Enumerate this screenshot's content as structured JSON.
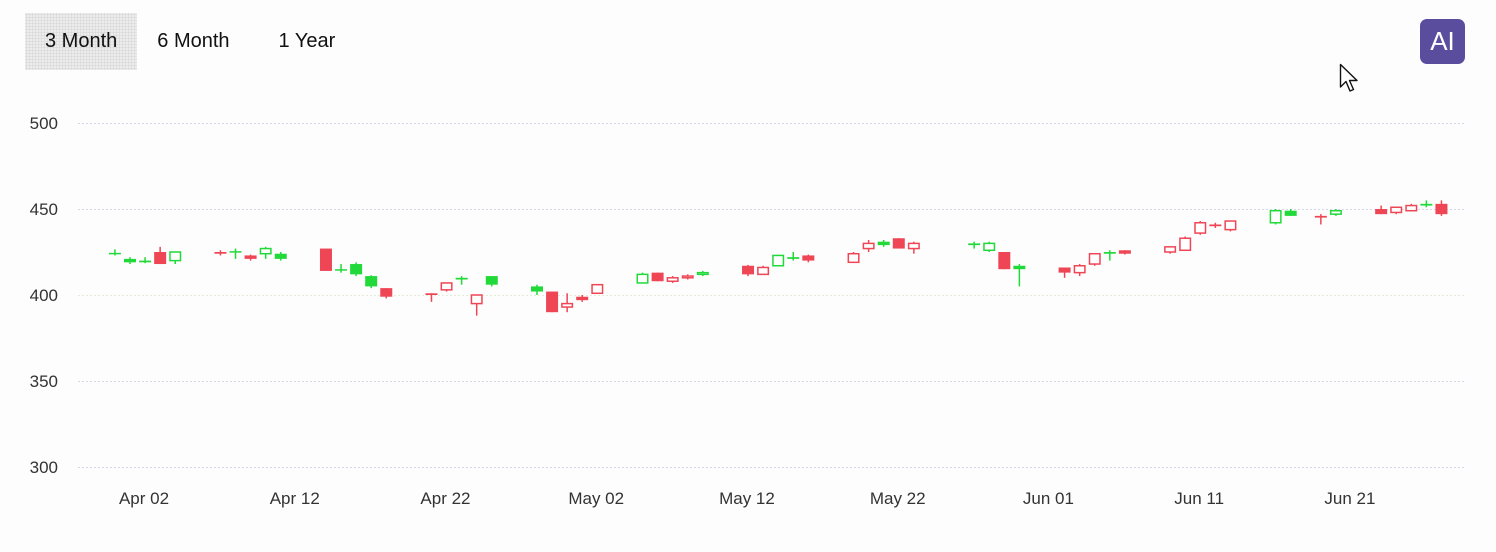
{
  "toolbar": {
    "tabs": [
      {
        "label": "3 Month",
        "selected": true
      },
      {
        "label": "6 Month",
        "selected": false
      },
      {
        "label": "1 Year",
        "selected": false
      }
    ],
    "ai_label": "AI",
    "ai_color": "#5b4d9e"
  },
  "colors": {
    "up": "#22d93a",
    "down": "#ef4656",
    "grid": "#d7d7ec",
    "grid_highlight": "#e4ecd7",
    "axis_text": "#333333"
  },
  "chart_data": {
    "type": "candlestick",
    "title": "",
    "xlabel": "",
    "ylabel": "",
    "ylim": [
      290,
      510
    ],
    "y_ticks": [
      300,
      350,
      400,
      450,
      500
    ],
    "x_ticks": [
      "Apr 02",
      "Apr 12",
      "Apr 22",
      "May 02",
      "May 12",
      "May 22",
      "Jun 01",
      "Jun 11",
      "Jun 21"
    ],
    "x_range": [
      "2024-03-29",
      "2024-06-29"
    ],
    "grid": true,
    "legend": "none",
    "candles": [
      {
        "date": "2024-04-01",
        "open": 424,
        "high": 426.5,
        "low": 423,
        "close": 424.5,
        "dir": "up",
        "filled": true
      },
      {
        "date": "2024-04-02",
        "open": 419,
        "high": 422,
        "low": 418,
        "close": 421,
        "dir": "up",
        "filled": true
      },
      {
        "date": "2024-04-03",
        "open": 419,
        "high": 422,
        "low": 418.5,
        "close": 420,
        "dir": "up",
        "filled": true
      },
      {
        "date": "2024-04-04",
        "open": 425,
        "high": 428,
        "low": 418,
        "close": 418,
        "dir": "down",
        "filled": true
      },
      {
        "date": "2024-04-05",
        "open": 420,
        "high": 425,
        "low": 418,
        "close": 425,
        "dir": "up",
        "filled": false
      },
      {
        "date": "2024-04-08",
        "open": 425,
        "high": 426,
        "low": 423,
        "close": 424,
        "dir": "down",
        "filled": true
      },
      {
        "date": "2024-04-09",
        "open": 425,
        "high": 427,
        "low": 421,
        "close": 425.5,
        "dir": "up",
        "filled": true
      },
      {
        "date": "2024-04-10",
        "open": 423,
        "high": 423.5,
        "low": 420,
        "close": 421,
        "dir": "down",
        "filled": true
      },
      {
        "date": "2024-04-11",
        "open": 424,
        "high": 428,
        "low": 421,
        "close": 427,
        "dir": "up",
        "filled": false
      },
      {
        "date": "2024-04-12",
        "open": 424,
        "high": 425,
        "low": 420,
        "close": 421,
        "dir": "up",
        "filled": true
      },
      {
        "date": "2024-04-15",
        "open": 427,
        "high": 427,
        "low": 414,
        "close": 414,
        "dir": "down",
        "filled": true
      },
      {
        "date": "2024-04-16",
        "open": 415,
        "high": 418,
        "low": 413,
        "close": 415,
        "dir": "up",
        "filled": true
      },
      {
        "date": "2024-04-17",
        "open": 418,
        "high": 419,
        "low": 411,
        "close": 412,
        "dir": "up",
        "filled": true
      },
      {
        "date": "2024-04-18",
        "open": 411,
        "high": 411.5,
        "low": 404,
        "close": 405,
        "dir": "up",
        "filled": true
      },
      {
        "date": "2024-04-19",
        "open": 404,
        "high": 404,
        "low": 398,
        "close": 399,
        "dir": "down",
        "filled": true
      },
      {
        "date": "2024-04-22",
        "open": 400,
        "high": 401,
        "low": 396,
        "close": 401,
        "dir": "down",
        "filled": true
      },
      {
        "date": "2024-04-23",
        "open": 403,
        "high": 407,
        "low": 402,
        "close": 407,
        "dir": "down",
        "filled": false
      },
      {
        "date": "2024-04-24",
        "open": 409,
        "high": 411,
        "low": 406,
        "close": 410,
        "dir": "up",
        "filled": true
      },
      {
        "date": "2024-04-25",
        "open": 395,
        "high": 400,
        "low": 388,
        "close": 400,
        "dir": "down",
        "filled": false
      },
      {
        "date": "2024-04-26",
        "open": 406,
        "high": 411,
        "low": 405,
        "close": 411,
        "dir": "up",
        "filled": true
      },
      {
        "date": "2024-04-29",
        "open": 405,
        "high": 406,
        "low": 400,
        "close": 402,
        "dir": "up",
        "filled": true
      },
      {
        "date": "2024-04-30",
        "open": 402,
        "high": 402,
        "low": 390,
        "close": 390,
        "dir": "down",
        "filled": true
      },
      {
        "date": "2024-05-01",
        "open": 393,
        "high": 401,
        "low": 390,
        "close": 395,
        "dir": "down",
        "filled": false
      },
      {
        "date": "2024-05-02",
        "open": 397,
        "high": 400,
        "low": 396,
        "close": 399,
        "dir": "down",
        "filled": true
      },
      {
        "date": "2024-05-03",
        "open": 401,
        "high": 406,
        "low": 401,
        "close": 406,
        "dir": "down",
        "filled": false
      },
      {
        "date": "2024-05-06",
        "open": 407,
        "high": 413,
        "low": 407,
        "close": 412,
        "dir": "up",
        "filled": false
      },
      {
        "date": "2024-05-07",
        "open": 413,
        "high": 413,
        "low": 408,
        "close": 408,
        "dir": "down",
        "filled": true
      },
      {
        "date": "2024-05-08",
        "open": 408,
        "high": 411,
        "low": 407,
        "close": 410,
        "dir": "down",
        "filled": false
      },
      {
        "date": "2024-05-09",
        "open": 410,
        "high": 412,
        "low": 409,
        "close": 411,
        "dir": "down",
        "filled": false
      },
      {
        "date": "2024-05-10",
        "open": 412,
        "high": 414,
        "low": 411,
        "close": 413,
        "dir": "up",
        "filled": false
      },
      {
        "date": "2024-05-13",
        "open": 417,
        "high": 417.5,
        "low": 411,
        "close": 412,
        "dir": "down",
        "filled": true
      },
      {
        "date": "2024-05-14",
        "open": 412,
        "high": 417,
        "low": 412,
        "close": 416,
        "dir": "down",
        "filled": false
      },
      {
        "date": "2024-05-15",
        "open": 417,
        "high": 423,
        "low": 417,
        "close": 423,
        "dir": "up",
        "filled": false
      },
      {
        "date": "2024-05-16",
        "open": 422,
        "high": 425,
        "low": 420,
        "close": 421,
        "dir": "up",
        "filled": true
      },
      {
        "date": "2024-05-17",
        "open": 423,
        "high": 423.5,
        "low": 419,
        "close": 420,
        "dir": "down",
        "filled": true
      },
      {
        "date": "2024-05-20",
        "open": 419,
        "high": 425,
        "low": 419,
        "close": 424,
        "dir": "down",
        "filled": false
      },
      {
        "date": "2024-05-21",
        "open": 427,
        "high": 432,
        "low": 425,
        "close": 430,
        "dir": "down",
        "filled": false
      },
      {
        "date": "2024-05-22",
        "open": 431,
        "high": 432,
        "low": 428,
        "close": 429,
        "dir": "up",
        "filled": true
      },
      {
        "date": "2024-05-23",
        "open": 433,
        "high": 433,
        "low": 427,
        "close": 427,
        "dir": "down",
        "filled": true
      },
      {
        "date": "2024-05-24",
        "open": 427,
        "high": 431,
        "low": 424,
        "close": 430,
        "dir": "down",
        "filled": false
      },
      {
        "date": "2024-05-28",
        "open": 430,
        "high": 431,
        "low": 427,
        "close": 429,
        "dir": "up",
        "filled": true
      },
      {
        "date": "2024-05-29",
        "open": 430,
        "high": 431,
        "low": 425,
        "close": 426,
        "dir": "up",
        "filled": false
      },
      {
        "date": "2024-05-30",
        "open": 425,
        "high": 425,
        "low": 415,
        "close": 415,
        "dir": "down",
        "filled": true
      },
      {
        "date": "2024-05-31",
        "open": 417,
        "high": 418,
        "low": 405,
        "close": 415,
        "dir": "up",
        "filled": true
      },
      {
        "date": "2024-06-03",
        "open": 416,
        "high": 416,
        "low": 410,
        "close": 413,
        "dir": "down",
        "filled": true
      },
      {
        "date": "2024-06-04",
        "open": 413,
        "high": 418,
        "low": 411,
        "close": 417,
        "dir": "down",
        "filled": false
      },
      {
        "date": "2024-06-05",
        "open": 418,
        "high": 424,
        "low": 417,
        "close": 424,
        "dir": "down",
        "filled": false
      },
      {
        "date": "2024-06-06",
        "open": 424,
        "high": 426,
        "low": 420,
        "close": 425,
        "dir": "up",
        "filled": true
      },
      {
        "date": "2024-06-07",
        "open": 426,
        "high": 426,
        "low": 423.5,
        "close": 424,
        "dir": "down",
        "filled": true
      },
      {
        "date": "2024-06-10",
        "open": 425,
        "high": 428,
        "low": 424,
        "close": 428,
        "dir": "down",
        "filled": false
      },
      {
        "date": "2024-06-11",
        "open": 426,
        "high": 434,
        "low": 426,
        "close": 433,
        "dir": "down",
        "filled": false
      },
      {
        "date": "2024-06-12",
        "open": 436,
        "high": 443,
        "low": 435,
        "close": 442,
        "dir": "down",
        "filled": false
      },
      {
        "date": "2024-06-13",
        "open": 440,
        "high": 442,
        "low": 439,
        "close": 441,
        "dir": "down",
        "filled": true
      },
      {
        "date": "2024-06-14",
        "open": 438,
        "high": 443,
        "low": 437,
        "close": 443,
        "dir": "down",
        "filled": false
      },
      {
        "date": "2024-06-17",
        "open": 442,
        "high": 450,
        "low": 441,
        "close": 449,
        "dir": "up",
        "filled": false
      },
      {
        "date": "2024-06-18",
        "open": 446,
        "high": 450,
        "low": 446,
        "close": 449,
        "dir": "up",
        "filled": true
      },
      {
        "date": "2024-06-20",
        "open": 446,
        "high": 447,
        "low": 441,
        "close": 445,
        "dir": "down",
        "filled": true
      },
      {
        "date": "2024-06-21",
        "open": 447,
        "high": 450,
        "low": 446,
        "close": 449,
        "dir": "up",
        "filled": false
      },
      {
        "date": "2024-06-24",
        "open": 450,
        "high": 452,
        "low": 447,
        "close": 447,
        "dir": "down",
        "filled": true
      },
      {
        "date": "2024-06-25",
        "open": 448,
        "high": 451,
        "low": 447,
        "close": 451,
        "dir": "down",
        "filled": false
      },
      {
        "date": "2024-06-26",
        "open": 449,
        "high": 453,
        "low": 449,
        "close": 452,
        "dir": "down",
        "filled": false
      },
      {
        "date": "2024-06-27",
        "open": 452,
        "high": 455,
        "low": 451,
        "close": 453,
        "dir": "up",
        "filled": true
      },
      {
        "date": "2024-06-28",
        "open": 453,
        "high": 455,
        "low": 446,
        "close": 447,
        "dir": "down",
        "filled": true
      }
    ]
  }
}
